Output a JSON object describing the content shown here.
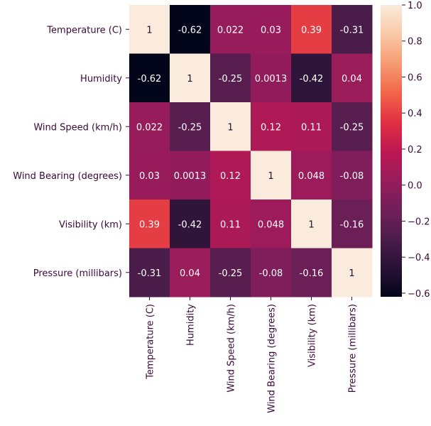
{
  "chart_data": {
    "type": "heatmap",
    "labels": [
      "Temperature (C)",
      "Humidity",
      "Wind Speed (km/h)",
      "Wind Bearing (degrees)",
      "Visibility (km)",
      "Pressure (millibars)"
    ],
    "matrix": [
      [
        "1",
        "-0.62",
        "0.022",
        "0.03",
        "0.39",
        "-0.31"
      ],
      [
        "-0.62",
        "1",
        "-0.25",
        "0.0013",
        "-0.42",
        "0.04"
      ],
      [
        "0.022",
        "-0.25",
        "1",
        "0.12",
        "0.11",
        "-0.25"
      ],
      [
        "0.03",
        "0.0013",
        "0.12",
        "1",
        "0.048",
        "-0.08"
      ],
      [
        "0.39",
        "-0.42",
        "0.11",
        "0.048",
        "1",
        "-0.16"
      ],
      [
        "-0.31",
        "0.04",
        "-0.25",
        "-0.08",
        "-0.16",
        "1"
      ]
    ],
    "colorbar": {
      "range": [
        -0.62,
        1.0
      ],
      "ticks": [
        "1.0",
        "0.8",
        "0.6",
        "0.4",
        "0.2",
        "0.0",
        "−0.2",
        "−0.4",
        "−0.6"
      ],
      "tick_values": [
        1.0,
        0.8,
        0.6,
        0.4,
        0.2,
        0.0,
        -0.2,
        -0.4,
        -0.6
      ],
      "colormap": "rocket"
    },
    "annotated": true
  }
}
